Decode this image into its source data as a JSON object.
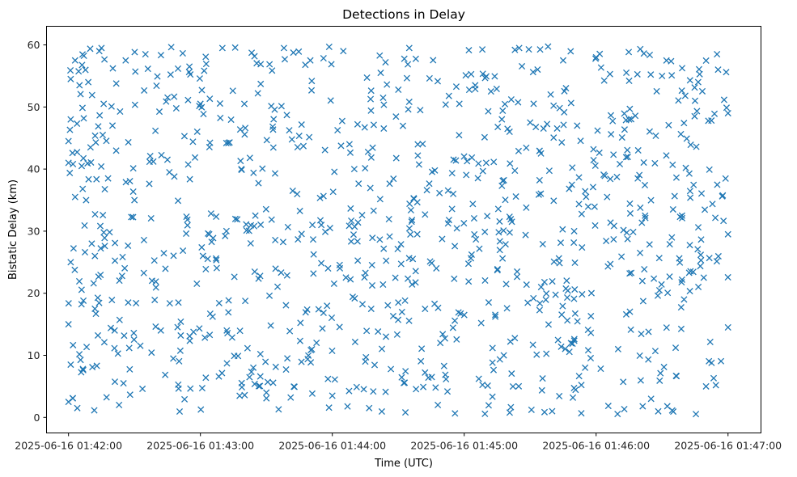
{
  "chart_data": {
    "type": "scatter",
    "title": "Detections in Delay",
    "xlabel": "Time (UTC)",
    "ylabel": "Bistatic Delay (km)",
    "x_tick_labels": [
      "2025-06-16 01:42:00",
      "2025-06-16 01:43:00",
      "2025-06-16 01:44:00",
      "2025-06-16 01:45:00",
      "2025-06-16 01:46:00",
      "2025-06-16 01:47:00"
    ],
    "y_ticks": [
      0,
      10,
      20,
      30,
      40,
      50,
      60
    ],
    "xlim": [
      "2025-06-16 01:41:50",
      "2025-06-16 01:47:15"
    ],
    "ylim": [
      -2.5,
      63
    ],
    "grid": false,
    "marker": "x",
    "color": "#1f77b4",
    "series": [
      {
        "x_range": [
          "2025-06-16 01:42:00",
          "2025-06-16 01:47:00"
        ],
        "points_approx": 1000,
        "points": [
          [
            "2025-06-16 01:42:00",
            44.5
          ],
          [
            "2025-06-16 01:42:00",
            41.0
          ],
          [
            "2025-06-16 01:42:00",
            15.0
          ],
          [
            "2025-06-16 01:42:00",
            2.5
          ],
          [
            "2025-06-16 01:42:01",
            54.5
          ],
          [
            "2025-06-16 01:42:01",
            48.0
          ],
          [
            "2025-06-16 01:42:01",
            8.5
          ],
          [
            "2025-06-16 01:42:01",
            25.0
          ],
          [
            "2025-06-16 01:42:03",
            57.5
          ],
          [
            "2025-06-16 01:42:03",
            35.5
          ],
          [
            "2025-06-16 01:42:04",
            1.5
          ],
          [
            "2025-06-16 01:42:05",
            53.5
          ],
          [
            "2025-06-16 01:42:06",
            40.5
          ],
          [
            "2025-06-16 01:42:08",
            35.0
          ],
          [
            "2025-06-16 01:42:09",
            54.0
          ],
          [
            "2025-06-16 01:42:10",
            43.5
          ],
          [
            "2025-06-16 01:42:12",
            17.5
          ],
          [
            "2025-06-16 01:42:12",
            26.0
          ],
          [
            "2025-06-16 01:42:14",
            59.0
          ],
          [
            "2025-06-16 01:42:15",
            59.5
          ],
          [
            "2025-06-16 01:42:16",
            50.5
          ],
          [
            "2025-06-16 01:42:18",
            38.5
          ],
          [
            "2025-06-16 01:42:20",
            47.0
          ],
          [
            "2025-06-16 01:42:21",
            14.0
          ],
          [
            "2025-06-16 01:42:23",
            2.0
          ],
          [
            "2025-06-16 01:42:26",
            57.5
          ],
          [
            "2025-06-16 01:42:30",
            35.0
          ],
          [
            "2025-06-16 01:42:35",
            58.5
          ],
          [
            "2025-06-16 01:42:38",
            22.0
          ],
          [
            "2025-06-16 01:42:42",
            14.0
          ],
          [
            "2025-06-16 01:42:45",
            41.5
          ],
          [
            "2025-06-16 01:42:50",
            18.5
          ],
          [
            "2025-06-16 01:42:55",
            56.5
          ],
          [
            "2025-06-16 01:43:00",
            50.5
          ],
          [
            "2025-06-16 01:43:04",
            29.5
          ],
          [
            "2025-06-16 01:43:10",
            59.5
          ],
          [
            "2025-06-16 01:43:12",
            14.0
          ],
          [
            "2025-06-16 01:43:20",
            50.5
          ],
          [
            "2025-06-16 01:43:25",
            32.5
          ],
          [
            "2025-06-16 01:43:30",
            4.0
          ],
          [
            "2025-06-16 01:43:38",
            59.5
          ],
          [
            "2025-06-16 01:43:42",
            36.5
          ],
          [
            "2025-06-16 01:43:50",
            57.5
          ],
          [
            "2025-06-16 01:43:55",
            31.0
          ],
          [
            "2025-06-16 01:44:00",
            3.5
          ],
          [
            "2025-06-16 01:44:05",
            59.0
          ],
          [
            "2025-06-16 01:44:10",
            40.0
          ],
          [
            "2025-06-16 01:44:15",
            9.0
          ],
          [
            "2025-06-16 01:44:22",
            55.5
          ],
          [
            "2025-06-16 01:44:30",
            18.5
          ],
          [
            "2025-06-16 01:44:35",
            59.5
          ],
          [
            "2025-06-16 01:44:40",
            49.5
          ],
          [
            "2025-06-16 01:44:48",
            2.0
          ],
          [
            "2025-06-16 01:44:55",
            36.0
          ],
          [
            "2025-06-16 01:45:00",
            16.5
          ],
          [
            "2025-06-16 01:45:05",
            53.5
          ],
          [
            "2025-06-16 01:45:10",
            41.0
          ],
          [
            "2025-06-16 01:45:18",
            10.0
          ],
          [
            "2025-06-16 01:45:25",
            59.5
          ],
          [
            "2025-06-16 01:45:30",
            47.5
          ],
          [
            "2025-06-16 01:45:35",
            21.0
          ],
          [
            "2025-06-16 01:45:40",
            1.0
          ],
          [
            "2025-06-16 01:45:45",
            57.5
          ],
          [
            "2025-06-16 01:45:50",
            30.0
          ],
          [
            "2025-06-16 01:45:55",
            8.0
          ],
          [
            "2025-06-16 01:46:00",
            58.0
          ],
          [
            "2025-06-16 01:46:05",
            35.5
          ],
          [
            "2025-06-16 01:46:10",
            11.0
          ],
          [
            "2025-06-16 01:46:15",
            48.0
          ],
          [
            "2025-06-16 01:46:20",
            26.5
          ],
          [
            "2025-06-16 01:46:25",
            3.0
          ],
          [
            "2025-06-16 01:46:30",
            55.0
          ],
          [
            "2025-06-16 01:46:35",
            33.5
          ],
          [
            "2025-06-16 01:46:40",
            19.0
          ],
          [
            "2025-06-16 01:46:45",
            51.0
          ],
          [
            "2025-06-16 01:46:50",
            5.0
          ],
          [
            "2025-06-16 01:46:55",
            58.5
          ],
          [
            "2025-06-16 01:47:00",
            49.0
          ],
          [
            "2025-06-16 01:47:00",
            29.5
          ],
          [
            "2025-06-16 01:47:00",
            14.5
          ]
        ]
      }
    ]
  }
}
